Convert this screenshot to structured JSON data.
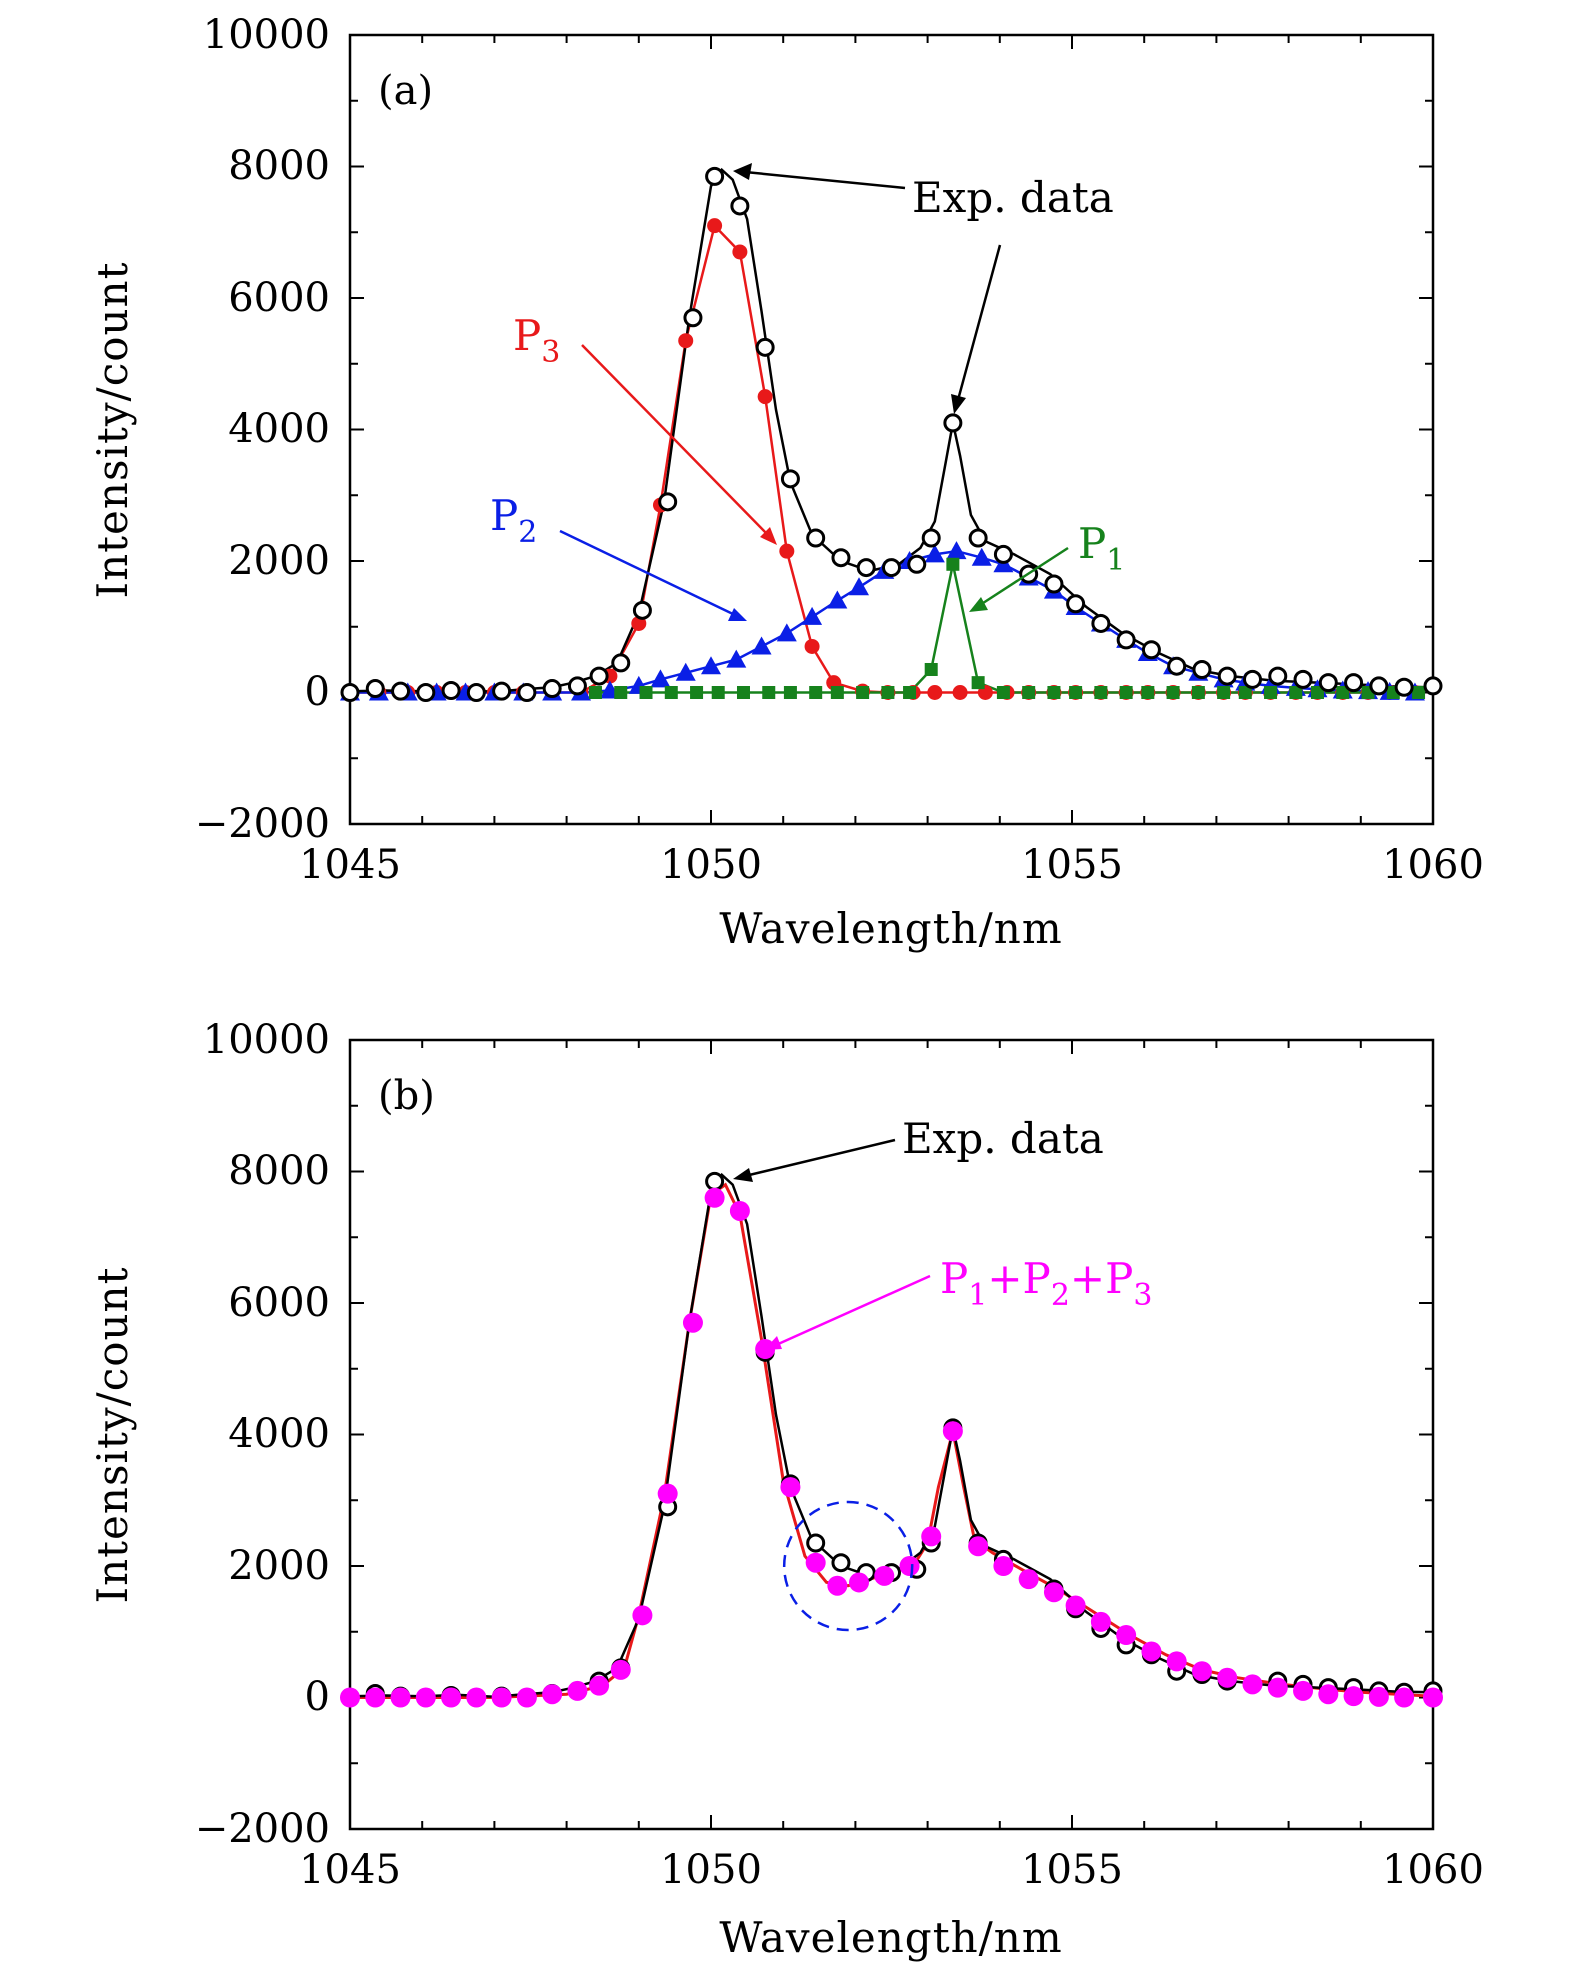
{
  "chart_data": [
    {
      "type": "line",
      "panel_label": "(a)",
      "xlabel": "Wavelength/nm",
      "ylabel": "Intensity/count",
      "xlim": [
        1045,
        1060
      ],
      "ylim": [
        -2000,
        10000
      ],
      "x_ticks": [
        "1045",
        "1050",
        "1055",
        "1060"
      ],
      "y_ticks": [
        "10000",
        "8000",
        "6000",
        "4000",
        "2000",
        "0",
        "−2000"
      ],
      "exp_line": {
        "x": [
          1045,
          1045.5,
          1046,
          1046.5,
          1047,
          1047.4,
          1047.8,
          1048.1,
          1048.4,
          1048.7,
          1049.0,
          1049.35,
          1049.7,
          1050.0,
          1050.15,
          1050.3,
          1050.5,
          1050.7,
          1050.9,
          1051.1,
          1051.4,
          1051.8,
          1052.2,
          1052.6,
          1052.9,
          1053.1,
          1053.25,
          1053.35,
          1053.45,
          1053.6,
          1053.8,
          1054.2,
          1054.7,
          1055.2,
          1055.7,
          1056.2,
          1056.7,
          1057.2,
          1057.8,
          1058.4,
          1059,
          1059.5,
          1060
        ],
        "y": [
          20,
          30,
          20,
          40,
          10,
          50,
          80,
          150,
          250,
          450,
          1200,
          2900,
          5700,
          7700,
          7950,
          7800,
          7200,
          5800,
          4300,
          3200,
          2400,
          2000,
          1850,
          1950,
          2200,
          2600,
          3500,
          4100,
          3600,
          2700,
          2300,
          2100,
          1800,
          1300,
          900,
          600,
          350,
          250,
          180,
          150,
          120,
          90,
          80
        ]
      },
      "series": [
        {
          "name": "Exp. data",
          "color": "#000000",
          "marker": "open-circle",
          "x": [
            1045.0,
            1045.35,
            1045.7,
            1046.05,
            1046.4,
            1046.75,
            1047.1,
            1047.45,
            1047.8,
            1048.15,
            1048.45,
            1048.75,
            1049.05,
            1049.4,
            1049.75,
            1050.05,
            1050.4,
            1050.75,
            1051.1,
            1051.45,
            1051.8,
            1052.15,
            1052.5,
            1052.85,
            1053.05,
            1053.35,
            1053.7,
            1054.05,
            1054.4,
            1054.75,
            1055.05,
            1055.4,
            1055.75,
            1056.1,
            1056.45,
            1056.8,
            1057.15,
            1057.5,
            1057.85,
            1058.2,
            1058.55,
            1058.9,
            1059.25,
            1059.6,
            1060.0
          ],
          "y": [
            0,
            60,
            20,
            0,
            30,
            0,
            20,
            0,
            60,
            100,
            250,
            450,
            1250,
            2900,
            5700,
            7850,
            7400,
            5250,
            3250,
            2350,
            2050,
            1900,
            1900,
            1950,
            2350,
            4100,
            2350,
            2100,
            1800,
            1650,
            1350,
            1050,
            800,
            650,
            400,
            350,
            250,
            200,
            250,
            200,
            150,
            150,
            100,
            80,
            100
          ]
        },
        {
          "name": "P3",
          "color": "#e8191a",
          "marker": "filled-circle",
          "x": [
            1045.0,
            1045.4,
            1045.8,
            1046.2,
            1046.6,
            1047.0,
            1047.4,
            1047.8,
            1048.2,
            1048.6,
            1049.0,
            1049.3,
            1049.65,
            1050.05,
            1050.4,
            1050.75,
            1051.05,
            1051.4,
            1051.7,
            1052.1,
            1052.45,
            1052.8,
            1053.1,
            1053.45,
            1053.8,
            1054.1,
            1054.4,
            1054.75,
            1055.05,
            1055.4,
            1055.75,
            1056.05,
            1056.4,
            1056.75,
            1057.1,
            1057.4,
            1057.75,
            1058.1,
            1058.4,
            1058.75,
            1059.1,
            1059.4,
            1059.75
          ],
          "y": [
            0,
            0,
            0,
            0,
            0,
            0,
            0,
            0,
            0,
            250,
            1050,
            2850,
            5350,
            7100,
            6700,
            4500,
            2150,
            700,
            150,
            20,
            0,
            0,
            0,
            0,
            0,
            0,
            0,
            0,
            0,
            0,
            0,
            0,
            0,
            0,
            0,
            0,
            0,
            0,
            0,
            0,
            0,
            0,
            0
          ]
        },
        {
          "name": "P2",
          "color": "#0a1fe6",
          "marker": "filled-triangle",
          "x": [
            1045.0,
            1045.4,
            1045.8,
            1046.2,
            1046.6,
            1047.0,
            1047.4,
            1047.8,
            1048.2,
            1048.6,
            1049.0,
            1049.3,
            1049.65,
            1050.0,
            1050.35,
            1050.7,
            1051.05,
            1051.4,
            1051.75,
            1052.05,
            1052.4,
            1052.75,
            1053.1,
            1053.4,
            1053.75,
            1054.05,
            1054.4,
            1054.75,
            1055.05,
            1055.4,
            1055.75,
            1056.05,
            1056.4,
            1056.75,
            1057.1,
            1057.4,
            1057.75,
            1058.1,
            1058.4,
            1058.75,
            1059.1,
            1059.4,
            1059.75
          ],
          "y": [
            0,
            0,
            0,
            0,
            0,
            0,
            0,
            0,
            0,
            30,
            100,
            200,
            300,
            400,
            500,
            700,
            900,
            1150,
            1400,
            1600,
            1850,
            2000,
            2100,
            2150,
            2050,
            1950,
            1750,
            1550,
            1300,
            1050,
            800,
            600,
            400,
            300,
            200,
            150,
            100,
            70,
            50,
            30,
            20,
            10,
            0
          ]
        },
        {
          "name": "P1",
          "color": "#16821c",
          "marker": "filled-square",
          "x": [
            1048.4,
            1048.75,
            1049.1,
            1049.45,
            1049.8,
            1050.1,
            1050.45,
            1050.8,
            1051.1,
            1051.45,
            1051.75,
            1052.1,
            1052.45,
            1052.75,
            1053.05,
            1053.35,
            1053.7,
            1054.05,
            1054.4,
            1054.75,
            1055.05,
            1055.4,
            1055.75,
            1056.05,
            1056.4,
            1056.75,
            1057.1,
            1057.4,
            1057.75,
            1058.1,
            1058.4,
            1058.75,
            1059.1,
            1059.45,
            1059.8
          ],
          "y": [
            0,
            0,
            0,
            0,
            0,
            0,
            0,
            0,
            0,
            0,
            0,
            0,
            0,
            0,
            350,
            1950,
            150,
            0,
            0,
            0,
            0,
            0,
            0,
            0,
            0,
            0,
            0,
            0,
            0,
            0,
            0,
            0,
            0,
            0,
            0
          ]
        }
      ],
      "annotations": [
        {
          "name": "exp-data",
          "text": "Exp. data",
          "color": "#000000"
        },
        {
          "name": "p3",
          "text": "P",
          "sub": "3",
          "color": "#e8191a"
        },
        {
          "name": "p2",
          "text": "P",
          "sub": "2",
          "color": "#0a1fe6"
        },
        {
          "name": "p1",
          "text": "P",
          "sub": "1",
          "color": "#16821c"
        }
      ]
    },
    {
      "type": "line",
      "panel_label": "(b)",
      "xlabel": "Wavelength/nm",
      "ylabel": "Intensity/count",
      "xlim": [
        1045,
        1060
      ],
      "ylim": [
        -2000,
        10000
      ],
      "x_ticks": [
        "1045",
        "1050",
        "1055",
        "1060"
      ],
      "y_ticks": [
        "10000",
        "8000",
        "6000",
        "4000",
        "2000",
        "0",
        "−2000"
      ],
      "exp_line": {
        "x": [
          1045,
          1045.5,
          1046,
          1046.5,
          1047,
          1047.4,
          1047.8,
          1048.1,
          1048.4,
          1048.7,
          1049.0,
          1049.35,
          1049.7,
          1050.0,
          1050.15,
          1050.3,
          1050.5,
          1050.7,
          1050.9,
          1051.1,
          1051.4,
          1051.8,
          1052.2,
          1052.6,
          1052.9,
          1053.1,
          1053.25,
          1053.35,
          1053.45,
          1053.6,
          1053.8,
          1054.2,
          1054.7,
          1055.2,
          1055.7,
          1056.2,
          1056.7,
          1057.2,
          1057.8,
          1058.4,
          1059,
          1059.5,
          1060
        ],
        "y": [
          20,
          30,
          20,
          40,
          10,
          50,
          80,
          150,
          250,
          450,
          1200,
          2900,
          5700,
          7700,
          7950,
          7800,
          7200,
          5800,
          4300,
          3200,
          2400,
          2000,
          1850,
          1950,
          2200,
          2600,
          3500,
          4100,
          3600,
          2700,
          2300,
          2100,
          1800,
          1300,
          900,
          600,
          350,
          250,
          180,
          150,
          120,
          90,
          80
        ]
      },
      "fit_line": {
        "x": [
          1045,
          1046,
          1047,
          1048,
          1048.5,
          1048.8,
          1049.0,
          1049.35,
          1049.7,
          1050.0,
          1050.2,
          1050.4,
          1050.7,
          1051.0,
          1051.3,
          1051.6,
          1051.9,
          1052.2,
          1052.5,
          1052.8,
          1053.0,
          1053.15,
          1053.35,
          1053.5,
          1053.65,
          1053.9,
          1054.3,
          1054.8,
          1055.3,
          1055.8,
          1056.3,
          1056.8,
          1057.3,
          1057.9,
          1058.5,
          1059,
          1059.5,
          1060
        ],
        "y": [
          0,
          0,
          0,
          50,
          180,
          450,
          1250,
          3050,
          5700,
          7650,
          7800,
          7350,
          5450,
          3300,
          2150,
          1750,
          1700,
          1800,
          1900,
          2000,
          2350,
          3200,
          4050,
          3200,
          2400,
          2200,
          1950,
          1650,
          1300,
          950,
          650,
          420,
          300,
          200,
          130,
          80,
          50,
          20
        ]
      },
      "series": [
        {
          "name": "Exp. data",
          "color": "#000000",
          "marker": "open-circle",
          "x": [
            1045.0,
            1045.35,
            1045.7,
            1046.05,
            1046.4,
            1046.75,
            1047.1,
            1047.45,
            1047.8,
            1048.15,
            1048.45,
            1048.75,
            1049.05,
            1049.4,
            1049.75,
            1050.05,
            1050.4,
            1050.75,
            1051.1,
            1051.45,
            1051.8,
            1052.15,
            1052.5,
            1052.85,
            1053.05,
            1053.35,
            1053.7,
            1054.05,
            1054.4,
            1054.75,
            1055.05,
            1055.4,
            1055.75,
            1056.1,
            1056.45,
            1056.8,
            1057.15,
            1057.5,
            1057.85,
            1058.2,
            1058.55,
            1058.9,
            1059.25,
            1059.6,
            1060.0
          ],
          "y": [
            0,
            60,
            20,
            0,
            30,
            0,
            20,
            0,
            60,
            100,
            250,
            450,
            1250,
            2900,
            5700,
            7850,
            7400,
            5250,
            3250,
            2350,
            2050,
            1900,
            1900,
            1950,
            2350,
            4100,
            2350,
            2100,
            1800,
            1650,
            1350,
            1050,
            800,
            650,
            400,
            350,
            250,
            200,
            250,
            200,
            150,
            150,
            100,
            80,
            100
          ]
        },
        {
          "name": "P1+P2+P3",
          "color": "#ff00ff",
          "marker": "filled-circle",
          "x": [
            1045.0,
            1045.35,
            1045.7,
            1046.05,
            1046.4,
            1046.75,
            1047.1,
            1047.45,
            1047.8,
            1048.15,
            1048.45,
            1048.75,
            1049.05,
            1049.4,
            1049.75,
            1050.05,
            1050.4,
            1050.75,
            1051.1,
            1051.45,
            1051.75,
            1052.05,
            1052.4,
            1052.75,
            1053.05,
            1053.35,
            1053.7,
            1054.05,
            1054.4,
            1054.75,
            1055.05,
            1055.4,
            1055.75,
            1056.1,
            1056.45,
            1056.8,
            1057.15,
            1057.5,
            1057.85,
            1058.2,
            1058.55,
            1058.9,
            1059.25,
            1059.6,
            1060.0
          ],
          "y": [
            0,
            0,
            0,
            0,
            0,
            0,
            0,
            0,
            50,
            100,
            180,
            420,
            1250,
            3100,
            5700,
            7600,
            7400,
            5300,
            3200,
            2050,
            1700,
            1750,
            1850,
            2000,
            2450,
            4050,
            2300,
            2000,
            1800,
            1600,
            1400,
            1150,
            950,
            700,
            550,
            400,
            300,
            200,
            150,
            100,
            50,
            20,
            10,
            0,
            0
          ]
        }
      ],
      "fit_color": "#e8191a",
      "annotations": [
        {
          "name": "exp-data",
          "text": "Exp. data",
          "color": "#000000"
        },
        {
          "name": "sum",
          "text": "P",
          "sub": "1",
          "text2": "+P",
          "sub2": "2",
          "text3": "+P",
          "sub3": "3",
          "color": "#ff00ff"
        }
      ],
      "highlight": {
        "x": 1051.9,
        "y": 2000,
        "color": "#0a1fe6"
      }
    }
  ]
}
